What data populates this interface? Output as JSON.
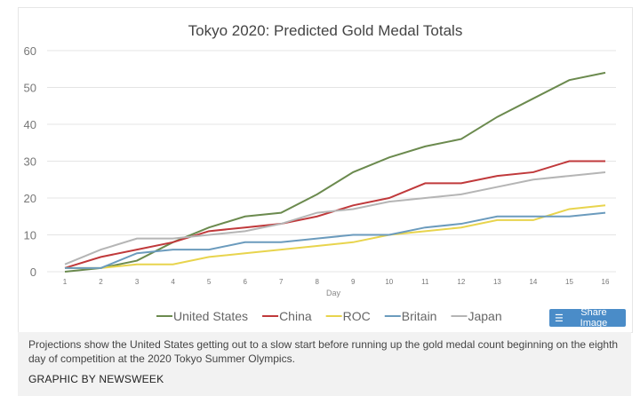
{
  "chart_data": {
    "type": "line",
    "title": "Tokyo 2020: Predicted Gold Medal Totals",
    "xlabel": "Day",
    "ylabel": "",
    "x": [
      1,
      2,
      3,
      4,
      5,
      6,
      7,
      8,
      9,
      10,
      11,
      12,
      13,
      14,
      15,
      16
    ],
    "ylim": [
      0,
      60
    ],
    "yticks": [
      0,
      10,
      20,
      30,
      40,
      50,
      60
    ],
    "grid": true,
    "legend": "bottom",
    "series": [
      {
        "name": "United States",
        "color": "#6b8a4e",
        "values": [
          0,
          1,
          3,
          8,
          12,
          15,
          16,
          21,
          27,
          31,
          34,
          36,
          42,
          47,
          52,
          54
        ]
      },
      {
        "name": "China",
        "color": "#c0393b",
        "values": [
          1,
          4,
          6,
          8,
          11,
          12,
          13,
          15,
          18,
          20,
          24,
          24,
          26,
          27,
          30,
          30
        ]
      },
      {
        "name": "ROC",
        "color": "#e8d44d",
        "values": [
          1,
          1,
          2,
          2,
          4,
          5,
          6,
          7,
          8,
          10,
          11,
          12,
          14,
          14,
          17,
          18
        ]
      },
      {
        "name": "Britain",
        "color": "#6b9bbd",
        "values": [
          1,
          1,
          5,
          6,
          6,
          8,
          8,
          9,
          10,
          10,
          12,
          13,
          15,
          15,
          15,
          16
        ]
      },
      {
        "name": "Japan",
        "color": "#b5b5b5",
        "values": [
          2,
          6,
          9,
          9,
          10,
          11,
          13,
          16,
          17,
          19,
          20,
          21,
          23,
          25,
          26,
          27
        ]
      }
    ]
  },
  "share_label": "Share Image",
  "share_icon": "layers-icon",
  "caption": "Projections show the United States getting out to a slow start before running up the gold medal count beginning on the eighth day of competition at the 2020 Tokyo Summer Olympics.",
  "credit": "GRAPHIC BY NEWSWEEK"
}
